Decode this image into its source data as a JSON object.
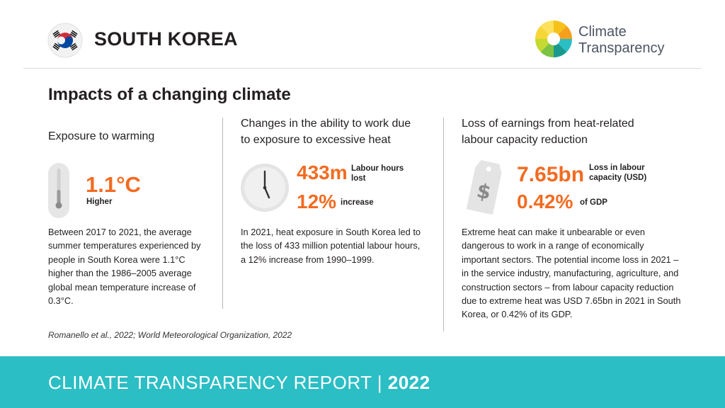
{
  "header": {
    "country": "SOUTH KOREA",
    "brand_line1": "Climate",
    "brand_line2": "Transparency"
  },
  "title": "Impacts of a changing climate",
  "columns": [
    {
      "title": "Exposure to warming",
      "stat1_value": "1.1°C",
      "stat1_label": "Higher",
      "body": "Between 2017 to 2021, the average summer temperatures experienced by people in South Korea were 1.1°C higher than the 1986–2005 average global mean temperature increase of 0.3°C.",
      "icon": "thermometer-icon"
    },
    {
      "title_line1": "Changes in the ability to work due",
      "title_line2": "to exposure to excessive heat",
      "stat1_value": "433m",
      "stat1_label_line1": "Labour hours",
      "stat1_label_line2": "lost",
      "stat2_value": "12%",
      "stat2_label": "increase",
      "body": "In 2021, heat exposure in South Korea led to the loss of 433 million potential labour hours, a 12% increase from 1990–1999.",
      "icon": "clock-icon"
    },
    {
      "title_line1": "Loss of earnings from heat-related",
      "title_line2": "labour capacity reduction",
      "stat1_value": "7.65bn",
      "stat1_label_line1": "Loss in labour",
      "stat1_label_line2": "capacity (USD)",
      "stat2_value": "0.42%",
      "stat2_label": "of GDP",
      "body": "Extreme heat can make it unbearable or even dangerous to work in a range of economically important sectors. The potential income loss in 2021 – in the service industry, manufacturing, agriculture, and construction sectors – from labour capacity reduction due to extreme heat was USD 7.65bn in 2021 in South Korea, or 0.42% of its GDP.",
      "icon": "price-tag-icon"
    }
  ],
  "source": "Romanello et al., 2022; World Meteorological Organization, 2022",
  "footer": {
    "text": "CLIMATE TRANSPARENCY REPORT | ",
    "year": "2022"
  },
  "colors": {
    "accent": "#f26b21",
    "footer_bg": "#2bbec5",
    "icon_gray": "#e4e4e4"
  }
}
